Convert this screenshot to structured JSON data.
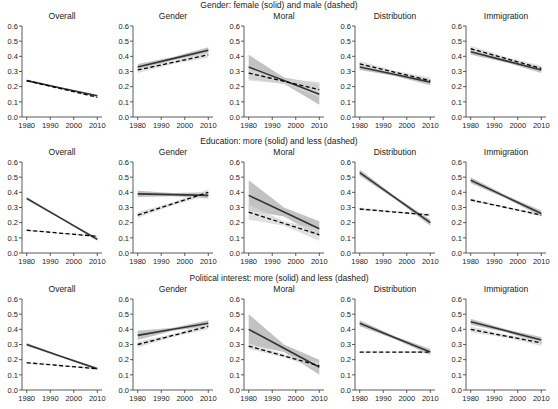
{
  "row_titles": [
    "Gender: female (solid) and male (dashed)",
    "Education: more (solid) and less (dashed)",
    "Political interest: more (solid) and less (dashed)"
  ],
  "chart_data": [
    {
      "type": "line",
      "title": "Overall",
      "x": [
        1980,
        1995,
        2010
      ],
      "xlim": [
        1978,
        2012
      ],
      "xticks": [
        1980,
        1990,
        2000,
        2010
      ],
      "ylim": [
        0,
        0.6
      ],
      "yticks": [
        {
          "value": 0,
          "label": "0.0"
        },
        0.1,
        0.2,
        0.3,
        0.4,
        0.5,
        0.6
      ],
      "series": [
        {
          "color": "#333333",
          "line_style": "solid",
          "values": [
            0.24,
            0.19,
            0.14
          ],
          "lower": [
            0.235,
            0.187,
            0.135
          ],
          "upper": [
            0.245,
            0.193,
            0.145
          ]
        },
        {
          "color": "#000000",
          "line_style": "dashed",
          "values": [
            0.24,
            0.185,
            0.13
          ],
          "lower": [
            0.235,
            0.182,
            0.125
          ],
          "upper": [
            0.245,
            0.188,
            0.135
          ]
        }
      ]
    },
    {
      "type": "line",
      "title": "Gender",
      "x": [
        1980,
        1995,
        2010
      ],
      "xlim": [
        1978,
        2012
      ],
      "xticks": [
        1980,
        1990,
        2000,
        2010
      ],
      "ylim": [
        0,
        0.6
      ],
      "yticks": [
        {
          "value": 0,
          "label": "0.0"
        },
        0.1,
        0.2,
        0.3,
        0.4,
        0.5,
        0.6
      ],
      "series": [
        {
          "color": "#333333",
          "line_style": "solid",
          "values": [
            0.33,
            0.385,
            0.44
          ],
          "lower": [
            0.31,
            0.375,
            0.42
          ],
          "upper": [
            0.35,
            0.395,
            0.46
          ]
        },
        {
          "color": "#000000",
          "line_style": "dashed",
          "values": [
            0.31,
            0.36,
            0.41
          ],
          "lower": [
            0.29,
            0.35,
            0.39
          ],
          "upper": [
            0.33,
            0.37,
            0.43
          ]
        }
      ]
    },
    {
      "type": "line",
      "title": "Moral",
      "x": [
        1980,
        1995,
        2010
      ],
      "xlim": [
        1978,
        2012
      ],
      "xticks": [
        1980,
        1990,
        2000,
        2010
      ],
      "ylim": [
        0,
        0.6
      ],
      "yticks": [
        {
          "value": 0,
          "label": "0.0"
        },
        0.1,
        0.2,
        0.3,
        0.4,
        0.5,
        0.6
      ],
      "series": [
        {
          "color": "#333333",
          "line_style": "solid",
          "values": [
            0.33,
            0.24,
            0.15
          ],
          "lower": [
            0.25,
            0.22,
            0.08
          ],
          "upper": [
            0.41,
            0.26,
            0.22
          ]
        },
        {
          "color": "#000000",
          "line_style": "dashed",
          "values": [
            0.29,
            0.235,
            0.18
          ],
          "lower": [
            0.24,
            0.22,
            0.13
          ],
          "upper": [
            0.34,
            0.25,
            0.23
          ]
        }
      ]
    },
    {
      "type": "line",
      "title": "Distribution",
      "x": [
        1980,
        1995,
        2010
      ],
      "xlim": [
        1978,
        2012
      ],
      "xticks": [
        1980,
        1990,
        2000,
        2010
      ],
      "ylim": [
        0,
        0.6
      ],
      "yticks": [
        {
          "value": 0,
          "label": "0.0"
        },
        0.1,
        0.2,
        0.3,
        0.4,
        0.5,
        0.6
      ],
      "series": [
        {
          "color": "#333333",
          "line_style": "solid",
          "values": [
            0.33,
            0.28,
            0.23
          ],
          "lower": [
            0.31,
            0.27,
            0.21
          ],
          "upper": [
            0.35,
            0.29,
            0.25
          ]
        },
        {
          "color": "#000000",
          "line_style": "dashed",
          "values": [
            0.35,
            0.295,
            0.24
          ],
          "lower": [
            0.33,
            0.285,
            0.22
          ],
          "upper": [
            0.37,
            0.305,
            0.26
          ]
        }
      ]
    },
    {
      "type": "line",
      "title": "Immigration",
      "x": [
        1980,
        1995,
        2010
      ],
      "xlim": [
        1978,
        2012
      ],
      "xticks": [
        1980,
        1990,
        2000,
        2010
      ],
      "ylim": [
        0,
        0.6
      ],
      "yticks": [
        {
          "value": 0,
          "label": "0.0"
        },
        0.1,
        0.2,
        0.3,
        0.4,
        0.5,
        0.6
      ],
      "series": [
        {
          "color": "#333333",
          "line_style": "solid",
          "values": [
            0.43,
            0.37,
            0.31
          ],
          "lower": [
            0.41,
            0.36,
            0.29
          ],
          "upper": [
            0.45,
            0.38,
            0.33
          ]
        },
        {
          "color": "#000000",
          "line_style": "dashed",
          "values": [
            0.45,
            0.385,
            0.32
          ],
          "lower": [
            0.43,
            0.375,
            0.3
          ],
          "upper": [
            0.47,
            0.395,
            0.34
          ]
        }
      ]
    },
    {
      "type": "line",
      "title": "Overall",
      "x": [
        1980,
        1995,
        2010
      ],
      "xlim": [
        1978,
        2012
      ],
      "xticks": [
        1980,
        1990,
        2000,
        2010
      ],
      "ylim": [
        0,
        0.6
      ],
      "yticks": [
        {
          "value": 0,
          "label": "0.0"
        },
        0.1,
        0.2,
        0.3,
        0.4,
        0.5,
        0.6
      ],
      "series": [
        {
          "color": "#333333",
          "line_style": "solid",
          "values": [
            0.36,
            0.225,
            0.09
          ],
          "lower": [
            0.35,
            0.22,
            0.08
          ],
          "upper": [
            0.37,
            0.23,
            0.1
          ]
        },
        {
          "color": "#000000",
          "line_style": "dashed",
          "values": [
            0.15,
            0.13,
            0.11
          ],
          "lower": [
            0.145,
            0.127,
            0.105
          ],
          "upper": [
            0.155,
            0.133,
            0.115
          ]
        }
      ]
    },
    {
      "type": "line",
      "title": "Gender",
      "x": [
        1980,
        1995,
        2010
      ],
      "xlim": [
        1978,
        2012
      ],
      "xticks": [
        1980,
        1990,
        2000,
        2010
      ],
      "ylim": [
        0,
        0.6
      ],
      "yticks": [
        {
          "value": 0,
          "label": "0.0"
        },
        0.1,
        0.2,
        0.3,
        0.4,
        0.5,
        0.6
      ],
      "series": [
        {
          "color": "#333333",
          "line_style": "solid",
          "values": [
            0.39,
            0.385,
            0.38
          ],
          "lower": [
            0.37,
            0.375,
            0.36
          ],
          "upper": [
            0.41,
            0.395,
            0.4
          ]
        },
        {
          "color": "#000000",
          "line_style": "dashed",
          "values": [
            0.25,
            0.325,
            0.4
          ],
          "lower": [
            0.23,
            0.315,
            0.38
          ],
          "upper": [
            0.27,
            0.335,
            0.42
          ]
        }
      ]
    },
    {
      "type": "line",
      "title": "Moral",
      "x": [
        1980,
        1995,
        2010
      ],
      "xlim": [
        1978,
        2012
      ],
      "xticks": [
        1980,
        1990,
        2000,
        2010
      ],
      "ylim": [
        0,
        0.6
      ],
      "yticks": [
        {
          "value": 0,
          "label": "0.0"
        },
        0.1,
        0.2,
        0.3,
        0.4,
        0.5,
        0.6
      ],
      "series": [
        {
          "color": "#333333",
          "line_style": "solid",
          "values": [
            0.38,
            0.27,
            0.16
          ],
          "lower": [
            0.28,
            0.24,
            0.11
          ],
          "upper": [
            0.48,
            0.3,
            0.21
          ]
        },
        {
          "color": "#000000",
          "line_style": "dashed",
          "values": [
            0.27,
            0.195,
            0.12
          ],
          "lower": [
            0.22,
            0.18,
            0.08
          ],
          "upper": [
            0.32,
            0.21,
            0.16
          ]
        }
      ]
    },
    {
      "type": "line",
      "title": "Distribution",
      "x": [
        1980,
        1995,
        2010
      ],
      "xlim": [
        1978,
        2012
      ],
      "xticks": [
        1980,
        1990,
        2000,
        2010
      ],
      "ylim": [
        0,
        0.6
      ],
      "yticks": [
        {
          "value": 0,
          "label": "0.0"
        },
        0.1,
        0.2,
        0.3,
        0.4,
        0.5,
        0.6
      ],
      "series": [
        {
          "color": "#333333",
          "line_style": "solid",
          "values": [
            0.53,
            0.365,
            0.2
          ],
          "lower": [
            0.51,
            0.355,
            0.18
          ],
          "upper": [
            0.55,
            0.375,
            0.22
          ]
        },
        {
          "color": "#000000",
          "line_style": "dashed",
          "values": [
            0.29,
            0.27,
            0.25
          ],
          "lower": [
            0.28,
            0.265,
            0.24
          ],
          "upper": [
            0.3,
            0.275,
            0.26
          ]
        }
      ]
    },
    {
      "type": "line",
      "title": "Immigration",
      "x": [
        1980,
        1995,
        2010
      ],
      "xlim": [
        1978,
        2012
      ],
      "xticks": [
        1980,
        1990,
        2000,
        2010
      ],
      "ylim": [
        0,
        0.6
      ],
      "yticks": [
        {
          "value": 0,
          "label": "0.0"
        },
        0.1,
        0.2,
        0.3,
        0.4,
        0.5,
        0.6
      ],
      "series": [
        {
          "color": "#333333",
          "line_style": "solid",
          "values": [
            0.48,
            0.37,
            0.26
          ],
          "lower": [
            0.46,
            0.36,
            0.24
          ],
          "upper": [
            0.5,
            0.38,
            0.28
          ]
        },
        {
          "color": "#000000",
          "line_style": "dashed",
          "values": [
            0.35,
            0.3,
            0.25
          ],
          "lower": [
            0.34,
            0.295,
            0.24
          ],
          "upper": [
            0.36,
            0.305,
            0.26
          ]
        }
      ]
    },
    {
      "type": "line",
      "title": "Overall",
      "x": [
        1980,
        1995,
        2010
      ],
      "xlim": [
        1978,
        2012
      ],
      "xticks": [
        1980,
        1990,
        2000,
        2010
      ],
      "ylim": [
        0,
        0.6
      ],
      "yticks": [
        {
          "value": 0,
          "label": "0.0"
        },
        0.1,
        0.2,
        0.3,
        0.4,
        0.5,
        0.6
      ],
      "series": [
        {
          "color": "#333333",
          "line_style": "solid",
          "values": [
            0.3,
            0.22,
            0.14
          ],
          "lower": [
            0.29,
            0.215,
            0.13
          ],
          "upper": [
            0.31,
            0.225,
            0.15
          ]
        },
        {
          "color": "#000000",
          "line_style": "dashed",
          "values": [
            0.18,
            0.16,
            0.14
          ],
          "lower": [
            0.175,
            0.157,
            0.135
          ],
          "upper": [
            0.185,
            0.163,
            0.145
          ]
        }
      ]
    },
    {
      "type": "line",
      "title": "Gender",
      "x": [
        1980,
        1995,
        2010
      ],
      "xlim": [
        1978,
        2012
      ],
      "xticks": [
        1980,
        1990,
        2000,
        2010
      ],
      "ylim": [
        0,
        0.6
      ],
      "yticks": [
        {
          "value": 0,
          "label": "0.0"
        },
        0.1,
        0.2,
        0.3,
        0.4,
        0.5,
        0.6
      ],
      "series": [
        {
          "color": "#333333",
          "line_style": "solid",
          "values": [
            0.36,
            0.4,
            0.44
          ],
          "lower": [
            0.33,
            0.39,
            0.42
          ],
          "upper": [
            0.39,
            0.41,
            0.46
          ]
        },
        {
          "color": "#000000",
          "line_style": "dashed",
          "values": [
            0.3,
            0.36,
            0.42
          ],
          "lower": [
            0.28,
            0.35,
            0.4
          ],
          "upper": [
            0.32,
            0.37,
            0.44
          ]
        }
      ]
    },
    {
      "type": "line",
      "title": "Moral",
      "x": [
        1980,
        1995,
        2010
      ],
      "xlim": [
        1978,
        2012
      ],
      "xticks": [
        1980,
        1990,
        2000,
        2010
      ],
      "ylim": [
        0,
        0.6
      ],
      "yticks": [
        {
          "value": 0,
          "label": "0.0"
        },
        0.1,
        0.2,
        0.3,
        0.4,
        0.5,
        0.6
      ],
      "series": [
        {
          "color": "#333333",
          "line_style": "solid",
          "values": [
            0.4,
            0.275,
            0.15
          ],
          "lower": [
            0.3,
            0.25,
            0.1
          ],
          "upper": [
            0.5,
            0.3,
            0.2
          ]
        },
        {
          "color": "#000000",
          "line_style": "dashed",
          "values": [
            0.29,
            0.225,
            0.16
          ],
          "lower": [
            0.27,
            0.215,
            0.14
          ],
          "upper": [
            0.31,
            0.235,
            0.18
          ]
        }
      ]
    },
    {
      "type": "line",
      "title": "Distribution",
      "x": [
        1980,
        1995,
        2010
      ],
      "xlim": [
        1978,
        2012
      ],
      "xticks": [
        1980,
        1990,
        2000,
        2010
      ],
      "ylim": [
        0,
        0.6
      ],
      "yticks": [
        {
          "value": 0,
          "label": "0.0"
        },
        0.1,
        0.2,
        0.3,
        0.4,
        0.5,
        0.6
      ],
      "series": [
        {
          "color": "#333333",
          "line_style": "solid",
          "values": [
            0.44,
            0.345,
            0.25
          ],
          "lower": [
            0.42,
            0.335,
            0.23
          ],
          "upper": [
            0.46,
            0.355,
            0.27
          ]
        },
        {
          "color": "#000000",
          "line_style": "dashed",
          "values": [
            0.25,
            0.25,
            0.25
          ],
          "lower": [
            0.245,
            0.247,
            0.24
          ],
          "upper": [
            0.255,
            0.253,
            0.26
          ]
        }
      ]
    },
    {
      "type": "line",
      "title": "Immigration",
      "x": [
        1980,
        1995,
        2010
      ],
      "xlim": [
        1978,
        2012
      ],
      "xticks": [
        1980,
        1990,
        2000,
        2010
      ],
      "ylim": [
        0,
        0.6
      ],
      "yticks": [
        {
          "value": 0,
          "label": "0.0"
        },
        0.1,
        0.2,
        0.3,
        0.4,
        0.5,
        0.6
      ],
      "series": [
        {
          "color": "#333333",
          "line_style": "solid",
          "values": [
            0.45,
            0.39,
            0.33
          ],
          "lower": [
            0.43,
            0.38,
            0.31
          ],
          "upper": [
            0.47,
            0.4,
            0.35
          ]
        },
        {
          "color": "#000000",
          "line_style": "dashed",
          "values": [
            0.4,
            0.355,
            0.31
          ],
          "lower": [
            0.38,
            0.345,
            0.29
          ],
          "upper": [
            0.42,
            0.365,
            0.33
          ]
        }
      ]
    }
  ]
}
